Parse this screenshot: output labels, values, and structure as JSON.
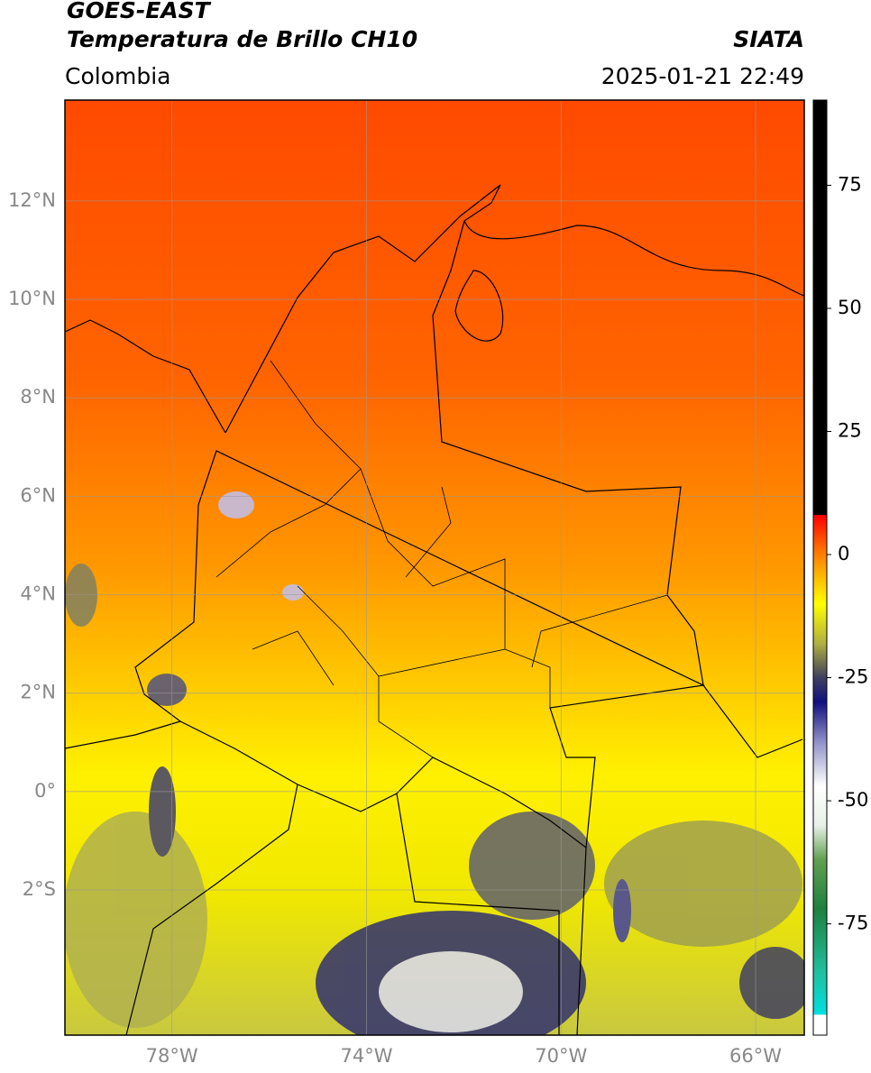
{
  "header": {
    "title": "GOES-EAST",
    "subtitle": "Temperatura de Brillo CH10",
    "region": "Colombia",
    "agency": "SIATA",
    "datetime": "2025-01-21 22:49"
  },
  "map": {
    "xlim": [
      -80.2,
      -65.0
    ],
    "ylim": [
      -4.95,
      14.05
    ],
    "grid": true,
    "xticks": [
      {
        "value": -78,
        "label": "78°W"
      },
      {
        "value": -74,
        "label": "74°W"
      },
      {
        "value": -70,
        "label": "70°W"
      },
      {
        "value": -66,
        "label": "66°W"
      }
    ],
    "yticks": [
      {
        "value": 12,
        "label": "12°N"
      },
      {
        "value": 10,
        "label": "10°N"
      },
      {
        "value": 8,
        "label": "8°N"
      },
      {
        "value": 6,
        "label": "6°N"
      },
      {
        "value": 4,
        "label": "4°N"
      },
      {
        "value": 2,
        "label": "2°N"
      },
      {
        "value": 0,
        "label": "0°"
      },
      {
        "value": -2,
        "label": "2°S"
      }
    ]
  },
  "colorbar": {
    "lim": [
      -97.6,
      92.3
    ],
    "ticks": [
      75,
      50,
      25,
      0,
      -25,
      -50,
      -75
    ],
    "stops": [
      {
        "value": -97.6,
        "color": "#ffffff"
      },
      {
        "value": -93.5,
        "color": "#ffffff"
      },
      {
        "value": -93.4,
        "color": "#00e0e0"
      },
      {
        "value": -85,
        "color": "#20c0a0"
      },
      {
        "value": -72,
        "color": "#208040"
      },
      {
        "value": -62,
        "color": "#60a050"
      },
      {
        "value": -55,
        "color": "#e8f0e8"
      },
      {
        "value": -47,
        "color": "#ffffff"
      },
      {
        "value": -38,
        "color": "#9090c8"
      },
      {
        "value": -30,
        "color": "#101080"
      },
      {
        "value": -25,
        "color": "#404060"
      },
      {
        "value": -18,
        "color": "#b0b040"
      },
      {
        "value": -10,
        "color": "#ffff00"
      },
      {
        "value": 0,
        "color": "#ff8000"
      },
      {
        "value": 8,
        "color": "#ff0000"
      },
      {
        "value": 8.1,
        "color": "#000000"
      },
      {
        "value": 92.3,
        "color": "#000000"
      }
    ]
  }
}
